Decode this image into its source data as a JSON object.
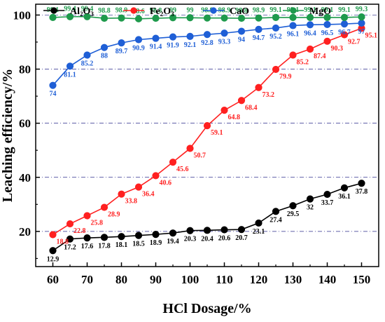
{
  "chart_data": {
    "type": "line",
    "xlabel": "HCl Dosage/%",
    "ylabel": "Leaching efficiency/%",
    "x": [
      60,
      65,
      70,
      75,
      80,
      85,
      90,
      95,
      100,
      105,
      110,
      115,
      120,
      125,
      130,
      135,
      140,
      145,
      150
    ],
    "xticks": [
      60,
      70,
      80,
      90,
      100,
      110,
      120,
      130,
      140,
      150
    ],
    "yticks": [
      20,
      40,
      60,
      80,
      100
    ],
    "xlim": [
      55,
      155
    ],
    "ylim": [
      7,
      104
    ],
    "grid": "horizontal dash-dot",
    "legend_position": "top",
    "series": [
      {
        "name": "Al2O3",
        "label_main": "Al",
        "label_sub1": "2",
        "label_mid": "O",
        "label_sub2": "3",
        "color": "#000000",
        "values": [
          12.9,
          17.2,
          17.6,
          17.8,
          18.1,
          18.5,
          18.9,
          19.4,
          20.3,
          20.4,
          20.6,
          20.7,
          23.1,
          27.4,
          29.5,
          32,
          33.7,
          36.1,
          37.8
        ],
        "data_labels": [
          "12.9",
          "17.2",
          "17.6",
          "17.8",
          "18.1",
          "18.5",
          "18.9",
          "19.4",
          "20.3",
          "20.4",
          "20.6",
          "20.7",
          "23.1",
          "27.4",
          "29.5",
          "32",
          "33.7",
          "36.1",
          "37.8"
        ]
      },
      {
        "name": "Fe2O3",
        "label_main": "Fe",
        "label_sub1": "2",
        "label_mid": "O",
        "label_sub2": "3",
        "color": "#ff2020",
        "values": [
          18.8,
          22.8,
          25.8,
          28.9,
          33.8,
          36.4,
          40.6,
          45.6,
          50.7,
          59.1,
          64.8,
          68.4,
          73.2,
          79.9,
          85.2,
          87.4,
          90.3,
          92.7,
          95.1
        ],
        "data_labels": [
          "18.8",
          "22.8",
          "25.8",
          "28.9",
          "33.8",
          "36.4",
          "40.6",
          "45.6",
          "50.7",
          "59.1",
          "64.8",
          "68.4",
          "73.2",
          "79.9",
          "85.2",
          "87.4",
          "90.3",
          "92.7",
          "95.1"
        ]
      },
      {
        "name": "CaO",
        "label_main": "CaO",
        "label_sub1": "",
        "label_mid": "",
        "label_sub2": "",
        "color": "#1f5fd6",
        "values": [
          74,
          81.1,
          85.2,
          88,
          89.7,
          90.9,
          91.4,
          91.9,
          92.1,
          92.8,
          93.3,
          94,
          94.7,
          95.2,
          96.1,
          96.4,
          96.5,
          96.7,
          97
        ],
        "data_labels": [
          "74",
          "81.1",
          "85.2",
          "88",
          "89.7",
          "90.9",
          "91.4",
          "91.9",
          "92.1",
          "92.8",
          "93.3",
          "94",
          "94.7",
          "95.2",
          "96.1",
          "96.4",
          "96.5",
          "96.7",
          "97"
        ]
      },
      {
        "name": "MgO",
        "label_main": "MgO",
        "label_sub1": "",
        "label_mid": "",
        "label_sub2": "",
        "color": "#1e9a4c",
        "values": [
          99.1,
          99.4,
          99.4,
          98.8,
          98.9,
          98.6,
          98.8,
          99,
          99,
          98.9,
          98.9,
          98.8,
          98.9,
          99.1,
          99.1,
          99.1,
          99.1,
          99.1,
          99.3
        ],
        "data_labels": [
          "99.1",
          "99.4",
          "99.4",
          "98.8",
          "98.9",
          "98.6",
          "98.8",
          "99",
          "99",
          "98.9",
          "98.9",
          "98.8",
          "98.9",
          "99.1",
          "99.1",
          "99.1",
          "99.1",
          "99.1",
          "99.3"
        ]
      }
    ]
  }
}
